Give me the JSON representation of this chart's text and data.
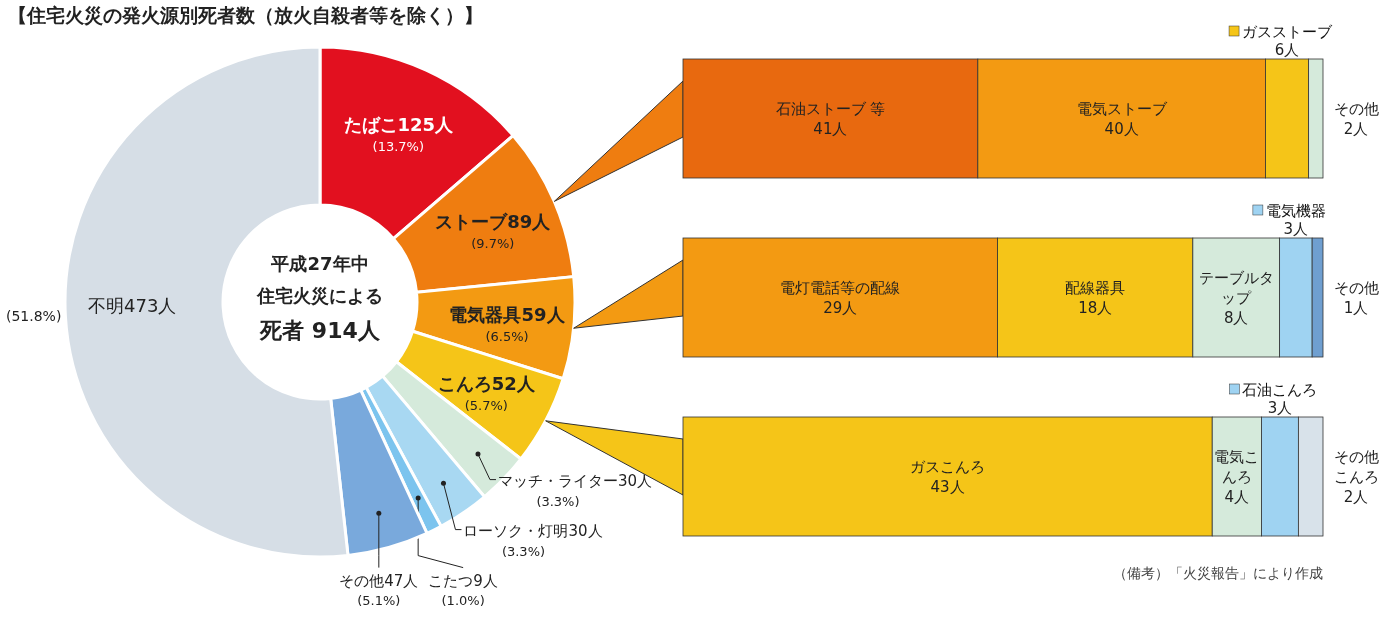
{
  "chart_data": [
    {
      "type": "donut",
      "title": "【住宅火災の発火源別死者数（放火自殺者等を除く）】",
      "categories": [
        "たばこ",
        "ストーブ",
        "電気器具",
        "こんろ",
        "マッチ・ライター",
        "ローソク・灯明",
        "こたつ",
        "その他",
        "不明"
      ],
      "values": [
        125,
        89,
        59,
        52,
        30,
        30,
        9,
        47,
        473
      ],
      "value_labels": [
        "125人",
        "89人",
        "59人",
        "52人",
        "30人",
        "30人",
        "9人",
        "47人",
        "473人"
      ],
      "colors": [
        "#e2101f",
        "#ef7d10",
        "#f39a12",
        "#f5c518",
        "#d5eadb",
        "#a8d8f2",
        "#7cc4ee",
        "#79a9dc",
        "#d6dee6"
      ],
      "annotations": [
        "(13.7%)",
        "(9.7%)",
        "(6.5%)",
        "(5.7%)",
        "(3.3%)",
        "(3.3%)",
        "(1.0%)",
        "(5.1%)",
        "(51.8%)",
        "平成27年中",
        "住宅火災による",
        "死者 914人"
      ]
    },
    {
      "type": "bar",
      "orientation": "horizontal",
      "stacked": true,
      "categories": [
        null
      ],
      "series": [
        {
          "name": "石油ストーブ 等",
          "color": "#e8690f",
          "values": [
            41
          ],
          "value_labels": [
            "41人"
          ]
        },
        {
          "name": "電気ストーブ",
          "color": "#f39a12",
          "values": [
            40
          ],
          "value_labels": [
            "40人"
          ]
        },
        {
          "name": "ガスストーブ",
          "color": "#f5c518",
          "values": [
            6
          ],
          "value_labels": [
            "6人"
          ]
        },
        {
          "name": "その他",
          "color": "#d5eadb",
          "values": [
            2
          ],
          "value_labels": [
            "2人"
          ]
        }
      ]
    },
    {
      "type": "bar",
      "orientation": "horizontal",
      "stacked": true,
      "categories": [
        null
      ],
      "series": [
        {
          "name": "電灯電話等の配線",
          "color": "#f39a12",
          "values": [
            29
          ],
          "value_labels": [
            "29人"
          ]
        },
        {
          "name": "配線器具",
          "color": "#f5c518",
          "values": [
            18
          ],
          "value_labels": [
            "18人"
          ]
        },
        {
          "name": "テーブルタップ",
          "color": "#d5eadb",
          "values": [
            8
          ],
          "value_labels": [
            "8人"
          ]
        },
        {
          "name": "電気機器",
          "color": "#9fd3f2",
          "values": [
            3
          ],
          "value_labels": [
            "3人"
          ]
        },
        {
          "name": "その他",
          "color": "#6f9fd0",
          "values": [
            1
          ],
          "value_labels": [
            "1人"
          ]
        }
      ]
    },
    {
      "type": "bar",
      "orientation": "horizontal",
      "stacked": true,
      "categories": [
        null
      ],
      "annotations": [
        "（備考）「火災報告」により作成"
      ],
      "series": [
        {
          "name": "ガスこんろ",
          "color": "#f5c518",
          "values": [
            43
          ],
          "value_labels": [
            "43人"
          ]
        },
        {
          "name": "電気こんろ",
          "color": "#d5eadb",
          "values": [
            4
          ],
          "value_labels": [
            "4人"
          ]
        },
        {
          "name": "石油こんろ",
          "color": "#9fd3f2",
          "values": [
            3
          ],
          "value_labels": [
            "3人"
          ]
        },
        {
          "name": "その他こんろ",
          "color": "#d8e2ea",
          "values": [
            2
          ],
          "value_labels": [
            "2人"
          ]
        }
      ]
    }
  ]
}
